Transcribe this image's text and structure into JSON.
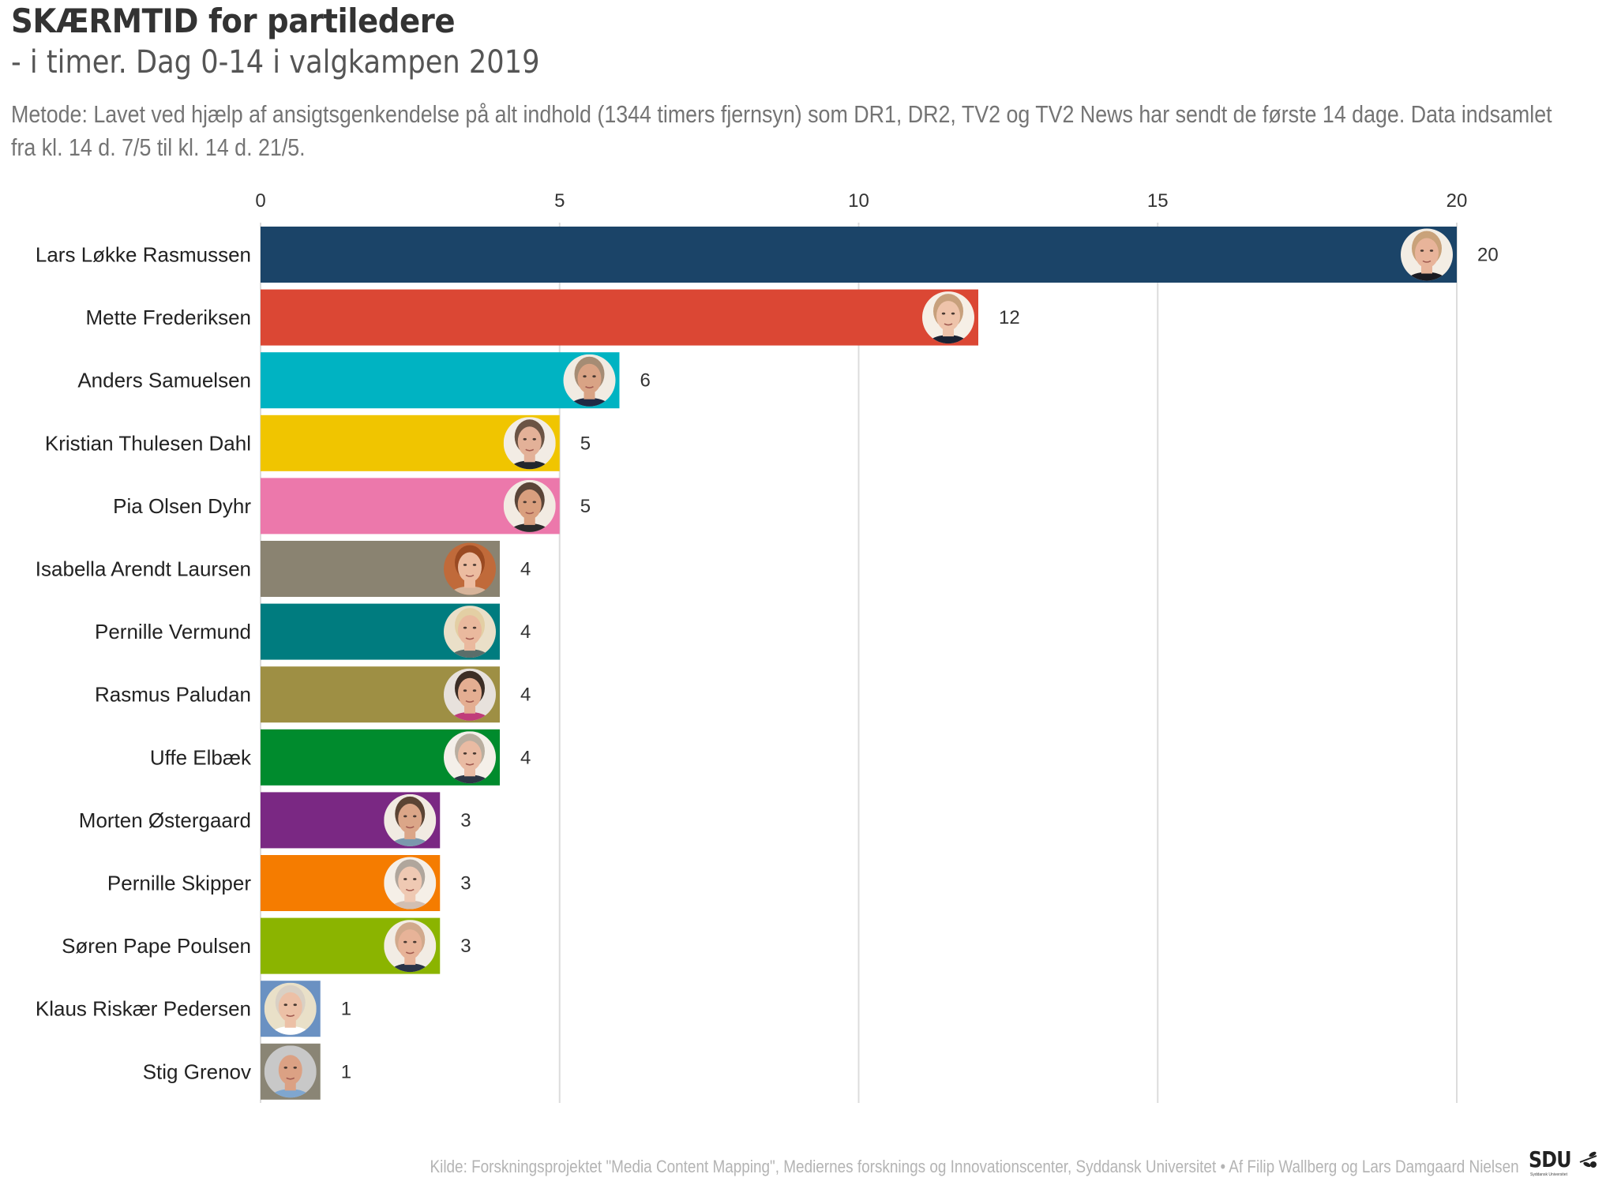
{
  "header": {
    "title": "SKÆRMTID for partiledere",
    "subtitle": "- i timer. Dag 0-14 i valgkampen 2019",
    "method": "Metode: Lavet ved hjælp af ansigtsgenkendelse på alt indhold (1344 timers fjernsyn) som DR1, DR2, TV2 og TV2 News har sendt de første 14 dage. Data indsamlet fra kl. 14 d. 7/5 til kl. 14 d. 21/5."
  },
  "footer": {
    "source": "Kilde: Forskningsprojektet \"Media Content Mapping\", Mediernes forsknings og Innovationscenter, Syddansk Universitet • Af Filip Wallberg og Lars Damgaard Nielsen",
    "logo_text": "SDU",
    "logo_sub": "Syddansk Universitet",
    "logo_icon": "olive-branch-icon"
  },
  "chart_data": {
    "type": "bar",
    "orientation": "horizontal",
    "title": "SKÆRMTID for partiledere",
    "subtitle": "- i timer. Dag 0-14 i valgkampen 2019",
    "xlabel": "",
    "ylabel": "",
    "xlim": [
      0,
      20
    ],
    "xticks": [
      0,
      5,
      10,
      15,
      20
    ],
    "xtick_position": "top",
    "grid": true,
    "legend": "none",
    "categories": [
      "Lars Løkke Rasmussen",
      "Mette Frederiksen",
      "Anders Samuelsen",
      "Kristian Thulesen Dahl",
      "Pia Olsen Dyhr",
      "Isabella Arendt Laursen",
      "Pernille Vermund",
      "Rasmus Paludan",
      "Uffe Elbæk",
      "Morten Østergaard",
      "Pernille Skipper",
      "Søren Pape Poulsen",
      "Klaus Riskær Pedersen",
      "Stig Grenov"
    ],
    "values": [
      20,
      12,
      6,
      5,
      5,
      4,
      4,
      4,
      4,
      3,
      3,
      3,
      1,
      1
    ],
    "value_labels": [
      "20",
      "12",
      "6",
      "5",
      "5",
      "4",
      "4",
      "4",
      "4",
      "3",
      "3",
      "3",
      "1",
      "1"
    ],
    "colors": [
      "#1b4468",
      "#db4734",
      "#00b3c2",
      "#f0c500",
      "#ec78ab",
      "#8a8371",
      "#007c7f",
      "#9e8f44",
      "#008b2d",
      "#7a2883",
      "#f57c00",
      "#8bb400",
      "#6a91c2",
      "#8a8575"
    ],
    "avatars": [
      {
        "name": "avatar-lars-lokke-rasmussen",
        "skin": "#e8b49a",
        "hair": "#c9a27a",
        "bg": "#f3ede4",
        "shirt": "#1b1b22"
      },
      {
        "name": "avatar-mette-frederiksen",
        "skin": "#eec3aa",
        "hair": "#c7a07c",
        "bg": "#f6efe6",
        "shirt": "#1b2233"
      },
      {
        "name": "avatar-anders-samuelsen",
        "skin": "#d9a385",
        "hair": "#a58c74",
        "bg": "#f1ebe2",
        "shirt": "#1f2a44"
      },
      {
        "name": "avatar-kristian-thulesen-dahl",
        "skin": "#e3b198",
        "hair": "#6b5444",
        "bg": "#f2ece4",
        "shirt": "#22262e"
      },
      {
        "name": "avatar-pia-olsen-dyhr",
        "skin": "#d99f7e",
        "hair": "#5a4538",
        "bg": "#f2ebe2",
        "shirt": "#2b2b2b"
      },
      {
        "name": "avatar-isabella-arendt-laursen",
        "skin": "#ecbca0",
        "hair": "#9a4a22",
        "bg": "#c06a3a",
        "shirt": "#d7b49a"
      },
      {
        "name": "avatar-pernille-vermund",
        "skin": "#eab99e",
        "hair": "#e3cfa4",
        "bg": "#eadfc8",
        "shirt": "#5a6e6a"
      },
      {
        "name": "avatar-rasmus-paludan",
        "skin": "#e4ae92",
        "hair": "#3c2e26",
        "bg": "#e7e1dc",
        "shirt": "#c03c7a"
      },
      {
        "name": "avatar-uffe-elbaek",
        "skin": "#e9bba3",
        "hair": "#b9aea0",
        "bg": "#f4efe9",
        "shirt": "#2c3544"
      },
      {
        "name": "avatar-morten-ostergaard",
        "skin": "#dba688",
        "hair": "#5b4434",
        "bg": "#f1ebe2",
        "shirt": "#7b98ad"
      },
      {
        "name": "avatar-pernille-skipper",
        "skin": "#efc9b3",
        "hair": "#b0a69c",
        "bg": "#f5efe7",
        "shirt": "#d2bfb2"
      },
      {
        "name": "avatar-soren-pape-poulsen",
        "skin": "#e7b398",
        "hair": "#d1a98c",
        "bg": "#f2ece4",
        "shirt": "#2a3448"
      },
      {
        "name": "avatar-klaus-riskaer-pedersen",
        "skin": "#ecc0a6",
        "hair": "#d9d0c4",
        "bg": "#e9e0c8",
        "shirt": "#ffffff"
      },
      {
        "name": "avatar-stig-grenov",
        "skin": "#dba184",
        "hair": "#c8c8c8",
        "bg": "#c8c8c8",
        "shirt": "#7fa6cf"
      }
    ]
  }
}
